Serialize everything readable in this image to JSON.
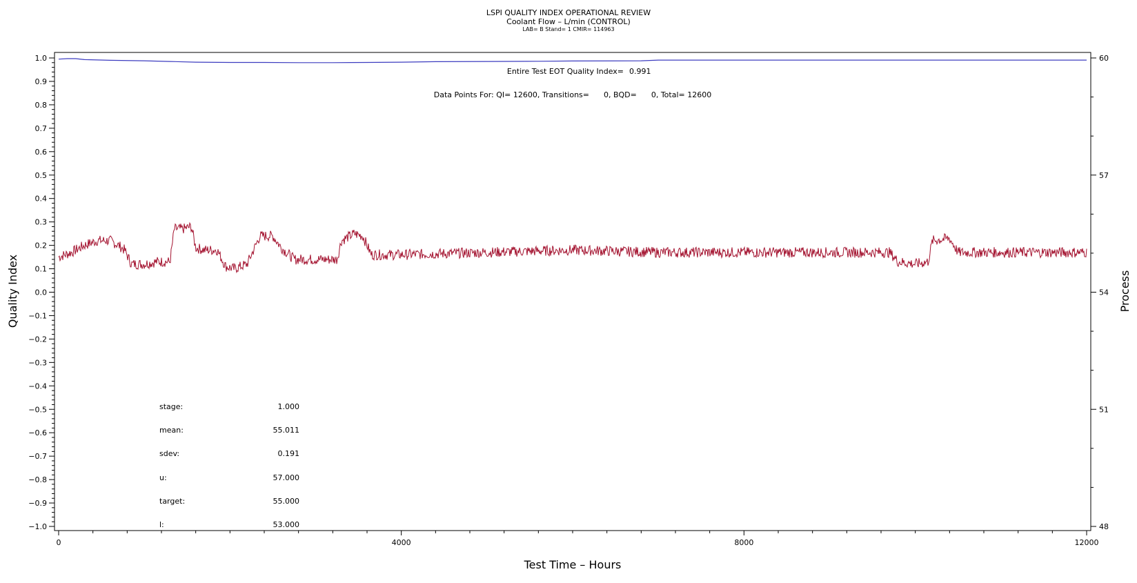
{
  "header": {
    "title": "LSPI QUALITY INDEX OPERATIONAL REVIEW",
    "subtitle": "Coolant Flow – L/min (CONTROL)",
    "subtitle2": "LAB= B Stand= 1 CMIR= 114963"
  },
  "annotations": {
    "eot_label": "Entire Test EOT Quality Index=",
    "eot_value": "0.991",
    "points_text": "Data Points For: QI= 12600, Transitions=      0, BQD=      0, Total= 12600"
  },
  "stats": [
    {
      "label": "stage:",
      "value": "1.000"
    },
    {
      "label": "mean:",
      "value": "55.011"
    },
    {
      "label": "sdev:",
      "value": "0.191"
    },
    {
      "label": "u:",
      "value": "57.000"
    },
    {
      "label": "target:",
      "value": "55.000"
    },
    {
      "label": "l:",
      "value": "53.000"
    }
  ],
  "chart_data": {
    "type": "line",
    "xlabel": "Test Time – Hours",
    "ylabel": "Quality Index",
    "y2label": "Process",
    "xlim": [
      0,
      12000
    ],
    "ylim": [
      -1.0,
      1.0
    ],
    "y2lim": [
      48,
      60
    ],
    "xticks": [
      "0",
      "4000",
      "8000",
      "12000"
    ],
    "yticks": [
      "1.0",
      "0.9",
      "0.8",
      "0.7",
      "0.6",
      "0.5",
      "0.4",
      "0.3",
      "0.2",
      "0.1",
      "0.0",
      "-0.1",
      "-0.2",
      "-0.3",
      "-0.4",
      "-0.5",
      "-0.6",
      "-0.7",
      "-0.8",
      "-0.9",
      "-1.0"
    ],
    "y2ticks": [
      "60",
      "57",
      "54",
      "51",
      "48"
    ],
    "series": [
      {
        "axis": "left",
        "color": "#3b3bbf",
        "x": [
          0,
          100,
          200,
          300,
          600,
          1000,
          1300,
          1600,
          2000,
          2400,
          2800,
          3200,
          3600,
          4000,
          4400,
          5000,
          5600,
          6000,
          6800,
          7000,
          8000,
          9000,
          10000,
          11000,
          12000
        ],
        "y": [
          0.995,
          0.997,
          0.997,
          0.993,
          0.99,
          0.988,
          0.985,
          0.982,
          0.981,
          0.981,
          0.98,
          0.98,
          0.981,
          0.982,
          0.984,
          0.985,
          0.986,
          0.987,
          0.988,
          0.991,
          0.991,
          0.991,
          0.991,
          0.991,
          0.991
        ]
      },
      {
        "axis": "left",
        "color": "#a3112e",
        "x": [
          0,
          150,
          300,
          450,
          600,
          700,
          770,
          850,
          1000,
          1150,
          1300,
          1350,
          1450,
          1550,
          1600,
          1700,
          1850,
          1950,
          2050,
          2200,
          2350,
          2500,
          2600,
          2750,
          3000,
          3250,
          3300,
          3450,
          3550,
          3650,
          4000,
          5000,
          6000,
          7000,
          8000,
          9000,
          9700,
          9800,
          10000,
          10150,
          10200,
          10400,
          10500,
          10600,
          11000,
          11500,
          12000
        ],
        "y": [
          0.15,
          0.17,
          0.2,
          0.22,
          0.22,
          0.2,
          0.18,
          0.12,
          0.12,
          0.13,
          0.13,
          0.27,
          0.27,
          0.28,
          0.19,
          0.18,
          0.18,
          0.11,
          0.1,
          0.12,
          0.24,
          0.24,
          0.19,
          0.14,
          0.14,
          0.14,
          0.22,
          0.25,
          0.24,
          0.16,
          0.16,
          0.17,
          0.18,
          0.17,
          0.17,
          0.17,
          0.17,
          0.13,
          0.12,
          0.13,
          0.22,
          0.23,
          0.17,
          0.17,
          0.17,
          0.17,
          0.17
        ]
      }
    ]
  }
}
